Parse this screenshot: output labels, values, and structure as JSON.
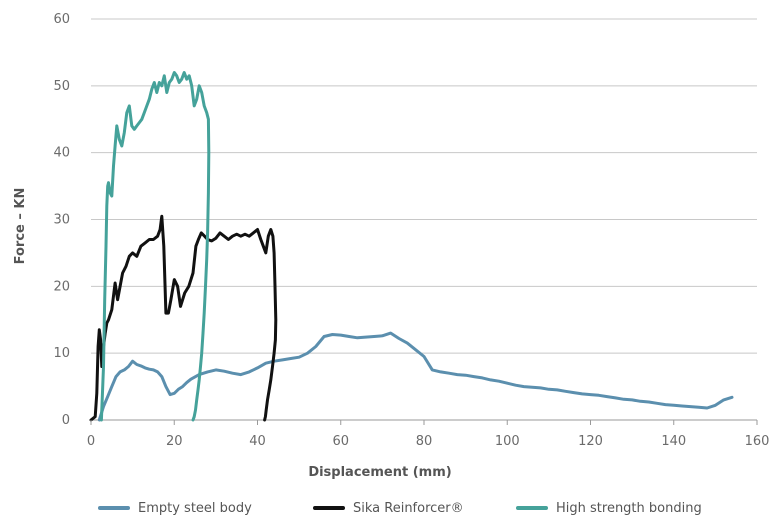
{
  "chart_data": {
    "type": "line",
    "xlabel": "Displacement (mm)",
    "ylabel": "Force – KN",
    "xlim": [
      0,
      160
    ],
    "ylim": [
      0,
      60
    ],
    "xticks": [
      "0",
      "20",
      "40",
      "60",
      "80",
      "100",
      "120",
      "140",
      "160"
    ],
    "yticks": [
      "0",
      "10",
      "20",
      "30",
      "40",
      "50",
      "60"
    ],
    "grid": "horizontal",
    "legend_position": "bottom",
    "series": [
      {
        "name": "Empty steel body",
        "color": "#5b8fae",
        "x": [
          2,
          3,
          4,
          5,
          6,
          7,
          8,
          9,
          10,
          11,
          12,
          13,
          14,
          15,
          16,
          17,
          18,
          19,
          20,
          21,
          22,
          23,
          24,
          26,
          28,
          30,
          32,
          34,
          36,
          38,
          40,
          42,
          44,
          46,
          48,
          50,
          52,
          54,
          56,
          58,
          60,
          62,
          64,
          66,
          68,
          70,
          72,
          74,
          76,
          78,
          80,
          82,
          84,
          86,
          88,
          90,
          92,
          94,
          96,
          98,
          100,
          102,
          104,
          106,
          108,
          110,
          112,
          114,
          116,
          118,
          120,
          122,
          124,
          126,
          128,
          130,
          132,
          134,
          136,
          138,
          140,
          142,
          144,
          146,
          148,
          150,
          152,
          154
        ],
        "y": [
          0,
          2,
          3.5,
          5,
          6.5,
          7.2,
          7.5,
          8,
          8.8,
          8.3,
          8.1,
          7.8,
          7.6,
          7.5,
          7.2,
          6.5,
          5,
          3.8,
          4,
          4.6,
          5,
          5.6,
          6.1,
          6.8,
          7.2,
          7.5,
          7.3,
          7,
          6.8,
          7.2,
          7.8,
          8.5,
          8.8,
          9,
          9.2,
          9.4,
          10,
          11,
          12.5,
          12.8,
          12.7,
          12.5,
          12.3,
          12.4,
          12.5,
          12.6,
          13,
          12.2,
          11.5,
          10.5,
          9.5,
          7.5,
          7.2,
          7,
          6.8,
          6.7,
          6.5,
          6.3,
          6,
          5.8,
          5.5,
          5.2,
          5,
          4.9,
          4.8,
          4.6,
          4.5,
          4.3,
          4.1,
          3.9,
          3.8,
          3.7,
          3.5,
          3.3,
          3.1,
          3,
          2.8,
          2.7,
          2.5,
          2.3,
          2.2,
          2.1,
          2,
          1.9,
          1.8,
          2.2,
          3,
          3.4
        ]
      },
      {
        "name": "Sika Reinforcer®",
        "color": "#111111",
        "x": [
          0,
          1,
          1.4,
          1.7,
          2,
          2.3,
          2.6,
          3,
          3.4,
          3.8,
          4.2,
          5,
          5.8,
          6.4,
          7,
          7.6,
          8.4,
          9.2,
          10,
          11,
          12,
          13,
          14,
          15,
          16,
          16.6,
          17,
          17.5,
          18,
          18.6,
          19.2,
          20,
          20.8,
          21.5,
          22.5,
          23.5,
          24.5,
          25.2,
          25.8,
          26.5,
          27.3,
          28,
          29,
          30,
          31,
          32,
          33,
          34,
          35,
          36,
          37,
          38,
          39,
          40,
          40.8,
          41.4,
          42,
          42.6,
          43.2,
          43.7,
          44,
          44.2,
          44.4,
          44.3,
          44,
          43.6,
          43.2,
          42.8,
          42.4,
          42.1,
          41.9,
          41.7
        ],
        "y": [
          0,
          0.5,
          4,
          11,
          13.5,
          12,
          8,
          11,
          13,
          14.5,
          15,
          16.5,
          20.5,
          18,
          20,
          22,
          23,
          24.5,
          25,
          24.5,
          26,
          26.5,
          27,
          27,
          27.5,
          28.5,
          30.5,
          26,
          16,
          16,
          18,
          21,
          20,
          17,
          19,
          20,
          22,
          26,
          27,
          28,
          27.5,
          27,
          26.8,
          27.2,
          28,
          27.5,
          27,
          27.5,
          27.8,
          27.5,
          27.8,
          27.5,
          28,
          28.5,
          27,
          26,
          25,
          27.5,
          28.5,
          27.5,
          25,
          20,
          15,
          12,
          10,
          8,
          6,
          4.5,
          3,
          1.5,
          0.5,
          0
        ]
      },
      {
        "name": "High strength bonding",
        "color": "#45a29a",
        "x": [
          2.5,
          3,
          3.3,
          3.6,
          3.8,
          4,
          4.2,
          4.6,
          5,
          5.4,
          5.8,
          6.2,
          6.8,
          7.4,
          8,
          8.6,
          9.2,
          9.8,
          10.4,
          11,
          11.6,
          12.2,
          12.8,
          13.4,
          14,
          14.6,
          15.2,
          15.8,
          16.4,
          17,
          17.6,
          18.2,
          18.8,
          19.4,
          20,
          20.6,
          21.2,
          21.8,
          22.4,
          23,
          23.6,
          24.2,
          24.8,
          25.4,
          26,
          26.6,
          27.2,
          27.8,
          28.2,
          28.3,
          28.2,
          28,
          27.8,
          27.5,
          27.2,
          26.9,
          26.6,
          26.3,
          26,
          25.7,
          25.4,
          25.1,
          24.8,
          24.5
        ],
        "y": [
          0,
          8,
          18,
          26,
          32,
          35,
          35.5,
          34,
          33.5,
          38,
          41,
          44,
          42,
          41,
          43,
          46,
          47,
          44,
          43.5,
          44,
          44.5,
          45,
          46,
          47,
          48,
          49.5,
          50.5,
          49,
          50.5,
          50,
          51.5,
          49,
          50.5,
          51,
          52,
          51.5,
          50.5,
          51,
          52,
          51,
          51.5,
          50,
          47,
          48,
          50,
          49,
          47,
          46,
          45,
          40,
          34,
          28,
          24,
          20,
          16,
          13,
          10,
          8,
          6,
          4.5,
          3,
          1.5,
          0.5,
          0
        ]
      }
    ]
  }
}
